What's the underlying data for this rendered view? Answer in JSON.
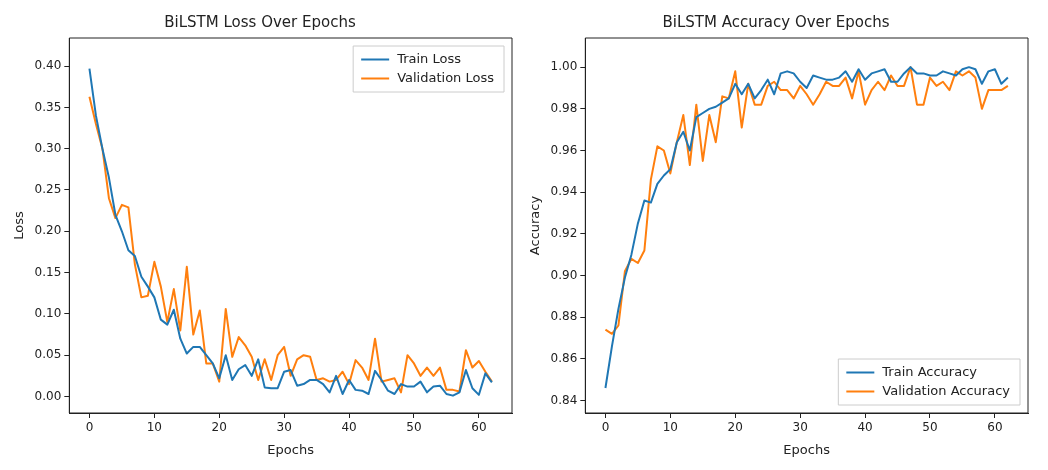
{
  "chart_data": [
    {
      "type": "line",
      "title": "BiLSTM Loss Over Epochs",
      "xlabel": "Epochs",
      "ylabel": "Loss",
      "legend": "top right",
      "grid": false,
      "xlim": [
        -3.1,
        65.1
      ],
      "xticks": [
        0,
        10,
        20,
        30,
        40,
        50,
        60
      ],
      "ylim": [
        -0.02,
        0.434
      ],
      "yticks": [
        {
          "value": 0,
          "label": "0.00"
        },
        {
          "value": 0.05,
          "label": "0.05"
        },
        {
          "value": 0.1,
          "label": "0.10"
        },
        {
          "value": 0.15,
          "label": "0.15"
        },
        {
          "value": 0.2,
          "label": "0.20"
        },
        {
          "value": 0.25,
          "label": "0.25"
        },
        {
          "value": 0.3,
          "label": "0.30"
        },
        {
          "value": 0.35,
          "label": "0.35"
        },
        {
          "value": 0.4,
          "label": "0.40"
        }
      ],
      "x": [
        0,
        1,
        2,
        3,
        4,
        5,
        6,
        7,
        8,
        9,
        10,
        11,
        12,
        13,
        14,
        15,
        16,
        17,
        18,
        19,
        20,
        21,
        22,
        23,
        24,
        25,
        26,
        27,
        28,
        29,
        30,
        31,
        32,
        33,
        34,
        35,
        36,
        37,
        38,
        39,
        40,
        41,
        42,
        43,
        44,
        45,
        46,
        47,
        48,
        49,
        50,
        51,
        52,
        53,
        54,
        55,
        56,
        57,
        58,
        59,
        60,
        61,
        62
      ],
      "series": [
        {
          "name": "Train Loss",
          "color": "#1f77b4",
          "values": [
            0.397,
            0.34,
            0.3,
            0.265,
            0.22,
            0.2,
            0.177,
            0.17,
            0.145,
            0.133,
            0.12,
            0.093,
            0.087,
            0.105,
            0.07,
            0.052,
            0.06,
            0.06,
            0.05,
            0.04,
            0.022,
            0.05,
            0.02,
            0.033,
            0.038,
            0.025,
            0.045,
            0.011,
            0.01,
            0.01,
            0.03,
            0.032,
            0.013,
            0.015,
            0.02,
            0.02,
            0.015,
            0.005,
            0.025,
            0.003,
            0.02,
            0.008,
            0.007,
            0.003,
            0.031,
            0.02,
            0.007,
            0.003,
            0.015,
            0.012,
            0.012,
            0.018,
            0.005,
            0.012,
            0.013,
            0.003,
            0.001,
            0.005,
            0.032,
            0.01,
            0.002,
            0.028,
            0.017
          ]
        },
        {
          "name": "Validation Loss",
          "color": "#ff7f0e",
          "values": [
            0.363,
            0.33,
            0.3,
            0.24,
            0.216,
            0.232,
            0.229,
            0.16,
            0.12,
            0.122,
            0.163,
            0.133,
            0.09,
            0.13,
            0.08,
            0.157,
            0.075,
            0.104,
            0.04,
            0.04,
            0.018,
            0.106,
            0.048,
            0.072,
            0.062,
            0.048,
            0.02,
            0.045,
            0.02,
            0.05,
            0.06,
            0.025,
            0.045,
            0.05,
            0.048,
            0.02,
            0.022,
            0.018,
            0.02,
            0.03,
            0.015,
            0.044,
            0.035,
            0.02,
            0.07,
            0.018,
            0.02,
            0.022,
            0.005,
            0.05,
            0.04,
            0.025,
            0.035,
            0.025,
            0.035,
            0.008,
            0.008,
            0.006,
            0.056,
            0.035,
            0.043,
            0.03,
            0.018
          ]
        }
      ]
    },
    {
      "type": "line",
      "title": "BiLSTM Accuracy Over Epochs",
      "xlabel": "Epochs",
      "ylabel": "Accuracy",
      "legend": "bottom right",
      "grid": false,
      "xlim": [
        -3.1,
        65.1
      ],
      "xticks": [
        0,
        10,
        20,
        30,
        40,
        50,
        60
      ],
      "ylim": [
        0.834,
        1.014
      ],
      "yticks": [
        {
          "value": 0.84,
          "label": "0.84"
        },
        {
          "value": 0.86,
          "label": "0.86"
        },
        {
          "value": 0.88,
          "label": "0.88"
        },
        {
          "value": 0.9,
          "label": "0.90"
        },
        {
          "value": 0.92,
          "label": "0.92"
        },
        {
          "value": 0.94,
          "label": "0.94"
        },
        {
          "value": 0.96,
          "label": "0.96"
        },
        {
          "value": 0.98,
          "label": "0.98"
        },
        {
          "value": 1,
          "label": "1.00"
        }
      ],
      "x": [
        0,
        1,
        2,
        3,
        4,
        5,
        6,
        7,
        8,
        9,
        10,
        11,
        12,
        13,
        14,
        15,
        16,
        17,
        18,
        19,
        20,
        21,
        22,
        23,
        24,
        25,
        26,
        27,
        28,
        29,
        30,
        31,
        32,
        33,
        34,
        35,
        36,
        37,
        38,
        39,
        40,
        41,
        42,
        43,
        44,
        45,
        46,
        47,
        48,
        49,
        50,
        51,
        52,
        53,
        54,
        55,
        56,
        57,
        58,
        59,
        60,
        61,
        62
      ],
      "series": [
        {
          "name": "Train Accuracy",
          "color": "#1f77b4",
          "values": [
            0.846,
            0.866,
            0.884,
            0.899,
            0.91,
            0.925,
            0.936,
            0.935,
            0.944,
            0.948,
            0.951,
            0.964,
            0.969,
            0.96,
            0.976,
            0.978,
            0.98,
            0.981,
            0.983,
            0.985,
            0.992,
            0.987,
            0.992,
            0.985,
            0.989,
            0.994,
            0.987,
            0.997,
            0.998,
            0.997,
            0.993,
            0.99,
            0.996,
            0.995,
            0.994,
            0.994,
            0.995,
            0.998,
            0.993,
            0.999,
            0.994,
            0.997,
            0.998,
            0.999,
            0.993,
            0.993,
            0.997,
            1.0,
            0.997,
            0.997,
            0.996,
            0.996,
            0.998,
            0.997,
            0.996,
            0.999,
            1.0,
            0.999,
            0.992,
            0.998,
            0.999,
            0.992,
            0.995
          ]
        },
        {
          "name": "Validation Accuracy",
          "color": "#ff7f0e",
          "values": [
            0.874,
            0.872,
            0.876,
            0.902,
            0.908,
            0.906,
            0.912,
            0.946,
            0.962,
            0.96,
            0.949,
            0.964,
            0.977,
            0.953,
            0.982,
            0.955,
            0.977,
            0.964,
            0.986,
            0.985,
            0.998,
            0.971,
            0.992,
            0.982,
            0.982,
            0.991,
            0.993,
            0.989,
            0.989,
            0.985,
            0.991,
            0.987,
            0.982,
            0.987,
            0.993,
            0.991,
            0.991,
            0.995,
            0.985,
            0.998,
            0.982,
            0.989,
            0.993,
            0.989,
            0.996,
            0.991,
            0.991,
            1.0,
            0.982,
            0.982,
            0.995,
            0.991,
            0.993,
            0.989,
            0.998,
            0.996,
            0.998,
            0.995,
            0.98,
            0.989,
            0.989,
            0.989,
            0.991
          ]
        }
      ]
    }
  ]
}
